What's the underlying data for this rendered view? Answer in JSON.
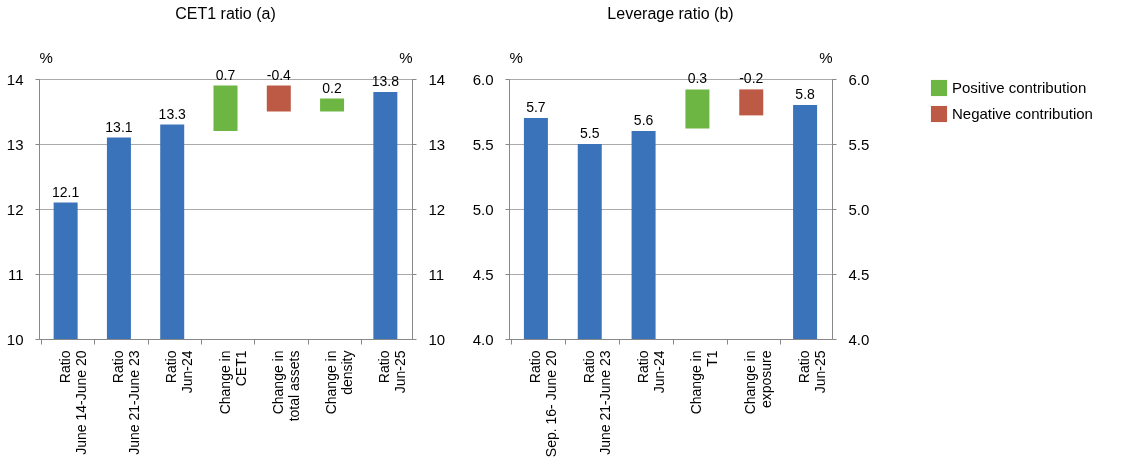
{
  "chart_data": [
    {
      "type": "bar",
      "title": "CET1 ratio (a)",
      "ylabel": "%",
      "y2label": "%",
      "categories": [
        "Ratio\nJune 14-June 20",
        "Ratio\nJune 21-June 23",
        "Ratio\nJun-24",
        "Change in\nCET1",
        "Change in\ntotal assets",
        "Change in\ndensity",
        "Ratio\nJun-25"
      ],
      "series": [
        {
          "color": "#3a73b9",
          "values": [
            12.1,
            13.1,
            13.3,
            null,
            null,
            null,
            13.8
          ]
        },
        {
          "name": "Positive contribution",
          "color": "#6db644",
          "values": [
            null,
            null,
            null,
            0.7,
            null,
            0.2,
            null
          ],
          "base": [
            null,
            null,
            null,
            13.2,
            null,
            13.5,
            null
          ]
        },
        {
          "name": "Negative contribution",
          "color": "#bd5a45",
          "values": [
            null,
            null,
            null,
            null,
            -0.4,
            null,
            null
          ],
          "base": [
            null,
            null,
            null,
            null,
            13.9,
            null,
            null
          ]
        }
      ],
      "ylim": [
        10,
        14
      ],
      "yticks": [
        10,
        11,
        12,
        13,
        14
      ],
      "y2lim": [
        10,
        14
      ],
      "y2ticks": [
        10,
        11,
        12,
        13,
        14
      ],
      "grid": "y",
      "data_labels": true,
      "legend": "top right"
    },
    {
      "type": "bar",
      "title": "Leverage ratio (b)",
      "ylabel": "%",
      "y2label": "%",
      "categories": [
        "Ratio\nSep. 16- June 20",
        "Ratio\nJune 21-June 23",
        "Ratio\nJun-24",
        "Change in\nT1",
        "Change in\nexposure",
        "Ratio\nJun-25"
      ],
      "series": [
        {
          "color": "#3a73b9",
          "values": [
            5.7,
            5.5,
            5.6,
            null,
            null,
            5.8
          ]
        },
        {
          "name": "Positive contribution",
          "color": "#6db644",
          "values": [
            null,
            null,
            null,
            0.3,
            null,
            null
          ],
          "base": [
            null,
            null,
            null,
            5.62,
            null,
            null
          ]
        },
        {
          "name": "Negative contribution",
          "color": "#bd5a45",
          "values": [
            null,
            null,
            null,
            null,
            -0.2,
            null
          ],
          "base": [
            null,
            null,
            null,
            null,
            5.92,
            null
          ]
        }
      ],
      "ylim": [
        4,
        6
      ],
      "yticks": [
        {
          "value": 4,
          "label": "4.0"
        },
        {
          "value": 4.5,
          "label": "4.5"
        },
        {
          "value": 5,
          "label": "5.0"
        },
        {
          "value": 5.5,
          "label": "5.5"
        },
        {
          "value": 6,
          "label": "6.0"
        }
      ],
      "y2lim": [
        4,
        6
      ],
      "y2ticks": [
        {
          "value": 4,
          "label": "4.0"
        },
        {
          "value": 4.5,
          "label": "4.5"
        },
        {
          "value": 5,
          "label": "5.0"
        },
        {
          "value": 5.5,
          "label": "5.5"
        },
        {
          "value": 6,
          "label": "6.0"
        }
      ],
      "grid": "y",
      "data_labels": true,
      "legend": "top right"
    }
  ]
}
